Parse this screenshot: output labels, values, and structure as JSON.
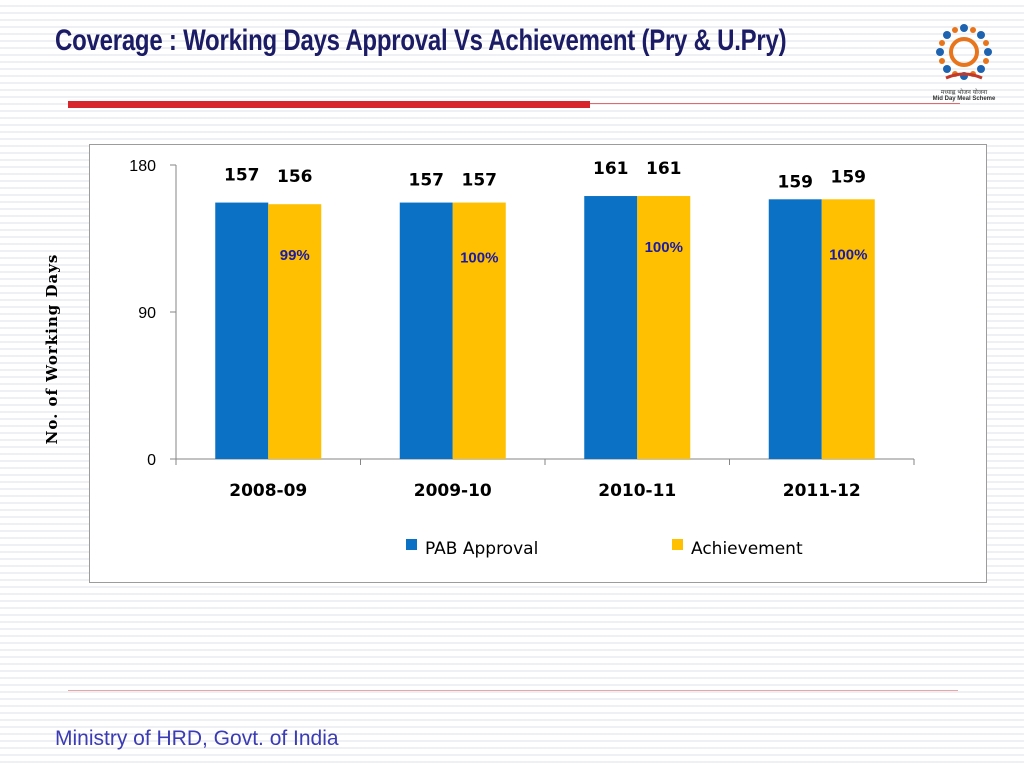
{
  "slide": {
    "title": "Coverage : Working Days Approval Vs Achievement (Pry & U.Pry)",
    "footer": "Ministry of HRD, Govt. of India",
    "logo_caption_hindi": "मध्याह्न भोजन योजना",
    "logo_caption": "Mid Day Meal Scheme",
    "colors": {
      "title": "#1c1c66",
      "accent_red": "#d8242b",
      "footer": "#3b3bb5"
    }
  },
  "chart_data": {
    "type": "bar",
    "title": "",
    "xlabel": "",
    "ylabel": "No. of Working Days",
    "ylim": [
      0,
      180
    ],
    "yticks": [
      0,
      90,
      180
    ],
    "grid": false,
    "legend_position": "bottom",
    "categories": [
      "2008-09",
      "2009-10",
      "2010-11",
      "2011-12"
    ],
    "series": [
      {
        "name": "PAB Approval",
        "color": "#0b71c5",
        "values": [
          157,
          157,
          161,
          159
        ]
      },
      {
        "name": "Achievement",
        "color": "#fec001",
        "values": [
          156,
          157,
          161,
          159
        ]
      }
    ],
    "annotations": [
      "99%",
      "100%",
      "100%",
      "100%"
    ],
    "annotation_color": "#1a1aa8"
  }
}
